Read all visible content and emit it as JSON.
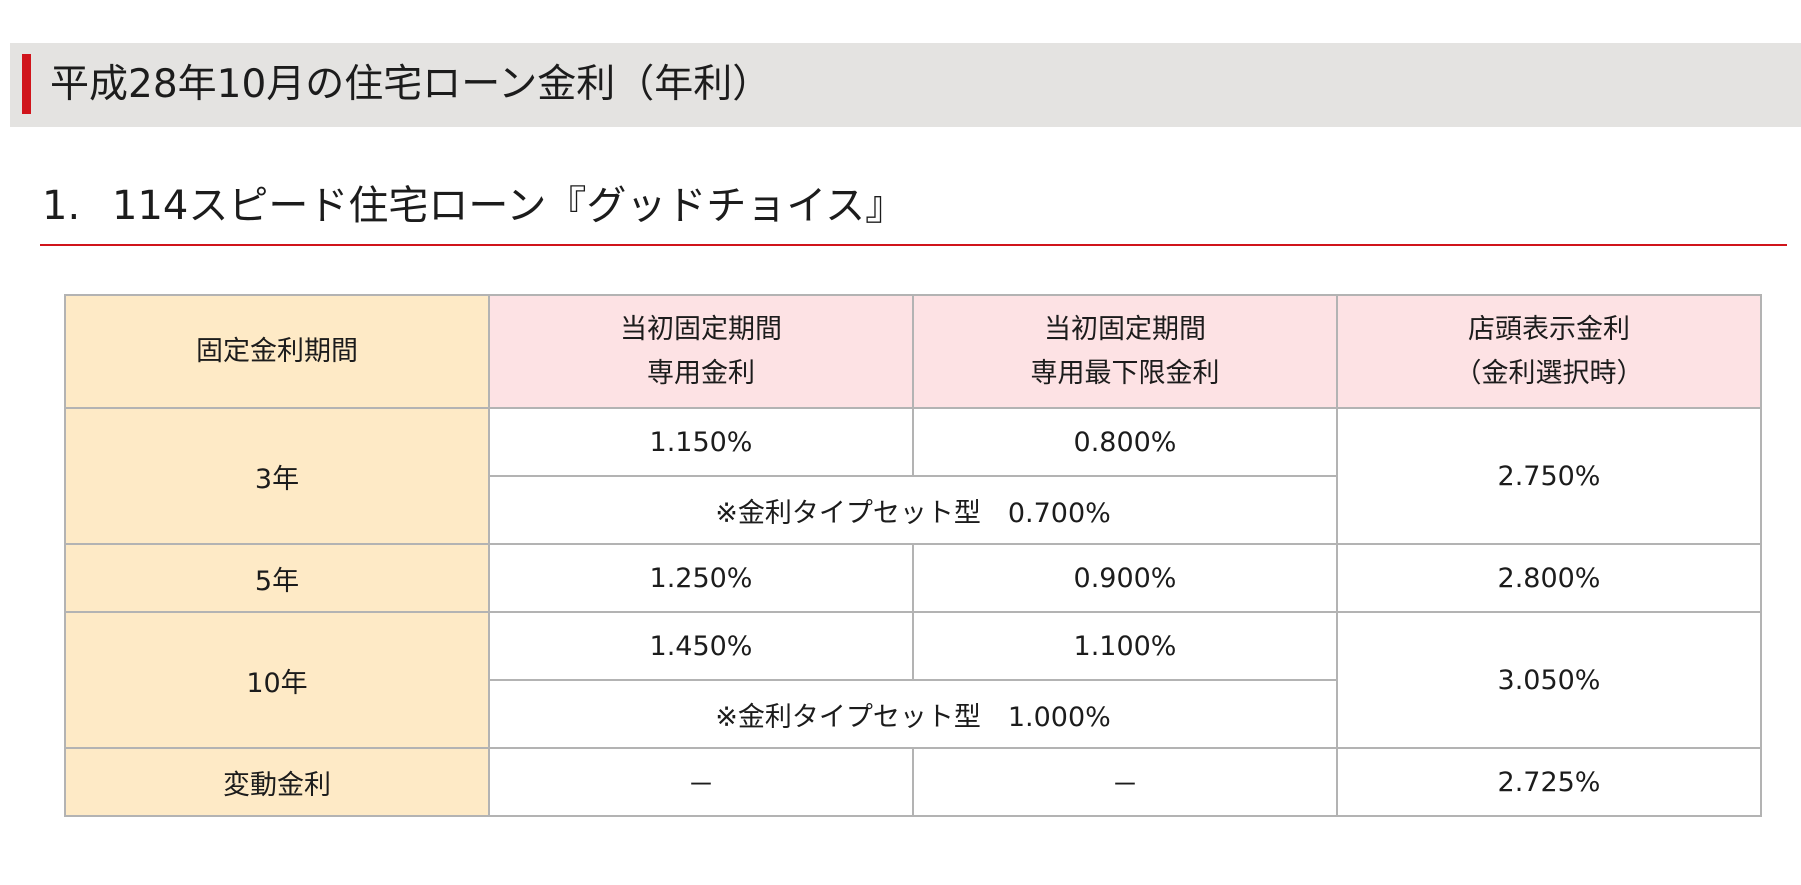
{
  "page": {
    "title": "平成28年10月の住宅ローン金利（年利）"
  },
  "section": {
    "number": "1.",
    "title": "114スピード住宅ローン『グッドチョイス』"
  },
  "table": {
    "headers": {
      "period": "固定金利期間",
      "initial_rate_line1": "当初固定期間",
      "initial_rate_line2": "専用金利",
      "floor_rate_line1": "当初固定期間",
      "floor_rate_line2": "専用最下限金利",
      "store_rate_line1": "店頭表示金利",
      "store_rate_line2": "（金利選択時）"
    },
    "rows": [
      {
        "period": "3年",
        "initial_rate": "1.150%",
        "floor_rate": "0.800%",
        "type_set_note": "※金利タイプセット型　0.700%",
        "store_rate": "2.750%"
      },
      {
        "period": "5年",
        "initial_rate": "1.250%",
        "floor_rate": "0.900%",
        "store_rate": "2.800%"
      },
      {
        "period": "10年",
        "initial_rate": "1.450%",
        "floor_rate": "1.100%",
        "type_set_note": "※金利タイプセット型　1.000%",
        "store_rate": "3.050%"
      },
      {
        "period": "変動金利",
        "initial_rate": "－",
        "floor_rate": "－",
        "store_rate": "2.725%"
      }
    ]
  },
  "colors": {
    "accent": "#d0141b",
    "header_band": "#e4e3e1",
    "label_column": "#feeac6",
    "header_pink": "#fde2e4",
    "border": "#b3b3b3"
  }
}
